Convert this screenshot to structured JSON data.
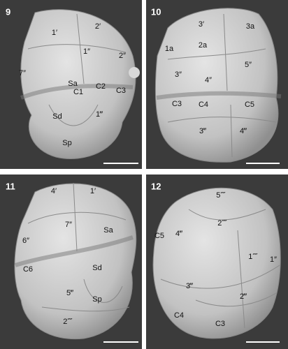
{
  "panels": [
    {
      "number": "9",
      "labels": [
        "1′",
        "2′",
        "1″",
        "2″",
        "7″",
        "Sa",
        "C1",
        "C2",
        "C3",
        "Sd",
        "1‴",
        "Sp"
      ]
    },
    {
      "number": "10",
      "labels": [
        "3′",
        "3a",
        "1a",
        "2a",
        "5″",
        "3″",
        "4″",
        "C3",
        "C4",
        "C5",
        "3‴",
        "4‴"
      ]
    },
    {
      "number": "11",
      "labels": [
        "4′",
        "1′",
        "7″",
        "Sa",
        "6″",
        "C6",
        "Sd",
        "5‴",
        "Sp",
        "2⁗"
      ]
    },
    {
      "number": "12",
      "labels": [
        "5⁗",
        "2⁗",
        "C5",
        "4‴",
        "1⁗",
        "1″",
        "3‴",
        "2‴",
        "C4",
        "C3"
      ]
    }
  ]
}
